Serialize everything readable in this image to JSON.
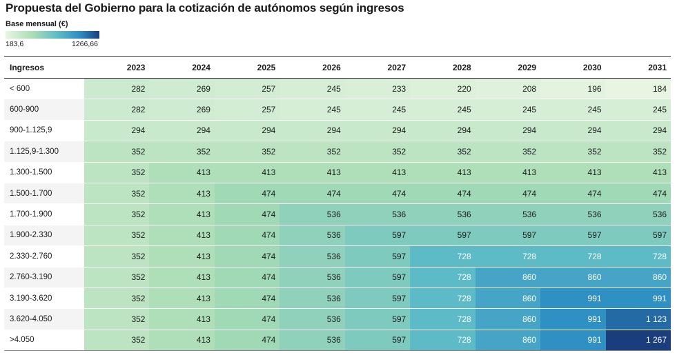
{
  "title": "Propuesta del Gobierno para la cotización de autónomos según ingresos",
  "legend": {
    "label": "Base mensual (€)",
    "min_label": "183,6",
    "max_label": "1266,66",
    "min_value": 183.6,
    "max_value": 1266.66,
    "color_low": "#e8f5e3",
    "color_mid1": "#a8dcb4",
    "color_mid2": "#5fbcc8",
    "color_mid3": "#2b8cc4",
    "color_high": "#1a3d7c"
  },
  "chart_data": {
    "type": "heatmap",
    "title": "Propuesta del Gobierno para la cotización de autónomos según ingresos",
    "row_header": "Ingresos",
    "columns": [
      "2023",
      "2024",
      "2025",
      "2026",
      "2027",
      "2028",
      "2029",
      "2030",
      "2031"
    ],
    "rows": [
      {
        "label": "< 600",
        "values": [
          282,
          269,
          257,
          245,
          233,
          220,
          208,
          196,
          184
        ],
        "labels": [
          "282",
          "269",
          "257",
          "245",
          "233",
          "220",
          "208",
          "196",
          "184"
        ]
      },
      {
        "label": "600-900",
        "values": [
          282,
          269,
          257,
          245,
          245,
          245,
          245,
          245,
          245
        ],
        "labels": [
          "282",
          "269",
          "257",
          "245",
          "245",
          "245",
          "245",
          "245",
          "245"
        ]
      },
      {
        "label": "900-1.125,9",
        "values": [
          294,
          294,
          294,
          294,
          294,
          294,
          294,
          294,
          294
        ],
        "labels": [
          "294",
          "294",
          "294",
          "294",
          "294",
          "294",
          "294",
          "294",
          "294"
        ]
      },
      {
        "label": "1.125,9-1.300",
        "values": [
          352,
          352,
          352,
          352,
          352,
          352,
          352,
          352,
          352
        ],
        "labels": [
          "352",
          "352",
          "352",
          "352",
          "352",
          "352",
          "352",
          "352",
          "352"
        ]
      },
      {
        "label": "1.300-1.500",
        "values": [
          352,
          413,
          413,
          413,
          413,
          413,
          413,
          413,
          413
        ],
        "labels": [
          "352",
          "413",
          "413",
          "413",
          "413",
          "413",
          "413",
          "413",
          "413"
        ]
      },
      {
        "label": "1.500-1.700",
        "values": [
          352,
          413,
          474,
          474,
          474,
          474,
          474,
          474,
          474
        ],
        "labels": [
          "352",
          "413",
          "474",
          "474",
          "474",
          "474",
          "474",
          "474",
          "474"
        ]
      },
      {
        "label": "1.700-1.900",
        "values": [
          352,
          413,
          474,
          536,
          536,
          536,
          536,
          536,
          536
        ],
        "labels": [
          "352",
          "413",
          "474",
          "536",
          "536",
          "536",
          "536",
          "536",
          "536"
        ]
      },
      {
        "label": "1.900-2.330",
        "values": [
          352,
          413,
          474,
          536,
          597,
          597,
          597,
          597,
          597
        ],
        "labels": [
          "352",
          "413",
          "474",
          "536",
          "597",
          "597",
          "597",
          "597",
          "597"
        ]
      },
      {
        "label": "2.330-2.760",
        "values": [
          352,
          413,
          474,
          536,
          597,
          728,
          728,
          728,
          728
        ],
        "labels": [
          "352",
          "413",
          "474",
          "536",
          "597",
          "728",
          "728",
          "728",
          "728"
        ]
      },
      {
        "label": "2.760-3.190",
        "values": [
          352,
          413,
          474,
          536,
          597,
          728,
          860,
          860,
          860
        ],
        "labels": [
          "352",
          "413",
          "474",
          "536",
          "597",
          "728",
          "860",
          "860",
          "860"
        ]
      },
      {
        "label": "3.190-3.620",
        "values": [
          352,
          413,
          474,
          536,
          597,
          728,
          860,
          991,
          991
        ],
        "labels": [
          "352",
          "413",
          "474",
          "536",
          "597",
          "728",
          "860",
          "991",
          "991"
        ]
      },
      {
        "label": "3.620-4.050",
        "values": [
          352,
          413,
          474,
          536,
          597,
          728,
          860,
          991,
          1123
        ],
        "labels": [
          "352",
          "413",
          "474",
          "536",
          "597",
          "728",
          "860",
          "991",
          "1 123"
        ]
      },
      {
        "label": ">4.050",
        "values": [
          352,
          413,
          474,
          536,
          597,
          728,
          860,
          991,
          1267
        ],
        "labels": [
          "352",
          "413",
          "474",
          "536",
          "597",
          "728",
          "860",
          "991",
          "1 267"
        ]
      }
    ]
  }
}
